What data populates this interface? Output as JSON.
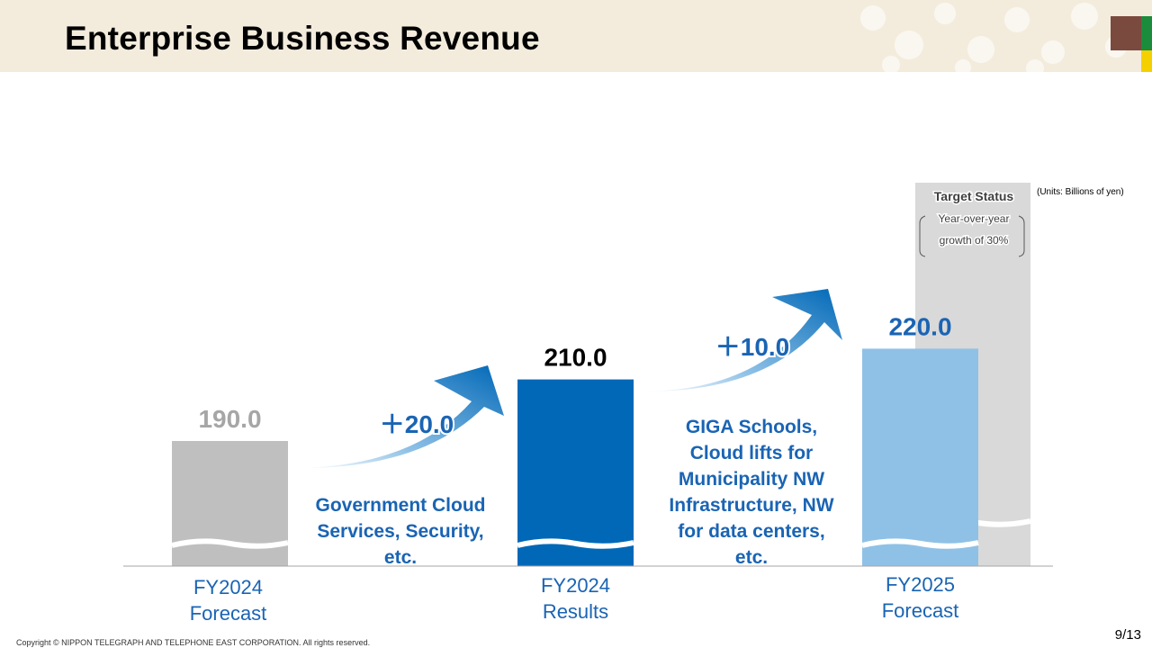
{
  "page": {
    "title": "Enterprise Business Revenue",
    "units": "(Units: Billions of yen)",
    "copyright": "Copyright © NIPPON TELEGRAPH AND TELEPHONE EAST CORPORATION. All rights reserved.",
    "page_number": "9/13"
  },
  "colors": {
    "forecast_2024": "#bfbfbf",
    "results_2024": "#0068b7",
    "forecast_2025": "#8fc1e6",
    "target_box": "#d9d9d9",
    "accent_text": "#1a64b4",
    "value_gray": "#a6a6a6",
    "brand_brown": "#7b4a3e",
    "brand_green": "#1a8c3c",
    "brand_yellow": "#f5d000"
  },
  "chart_data": {
    "type": "bar",
    "categories": [
      "FY2024\nForecast",
      "FY2024\nResults",
      "FY2025\nForecast"
    ],
    "values": [
      190.0,
      210.0,
      220.0
    ],
    "value_labels": [
      "190.0",
      "210.0",
      "220.0"
    ],
    "increments": [
      {
        "label": "+20.0",
        "display": "＋20.0",
        "drivers": "Government Cloud\nServices, Security,\netc."
      },
      {
        "label": "+10.0",
        "display": "＋10.0",
        "drivers": "GIGA Schools,\nCloud lifts for\nMunicipality NW\nInfrastructure, NW\nfor data centers,\netc."
      }
    ],
    "target": {
      "title": "Target Status",
      "detail_lines": [
        "Year-over-year",
        "growth of 30%"
      ]
    },
    "axis_break": true
  }
}
